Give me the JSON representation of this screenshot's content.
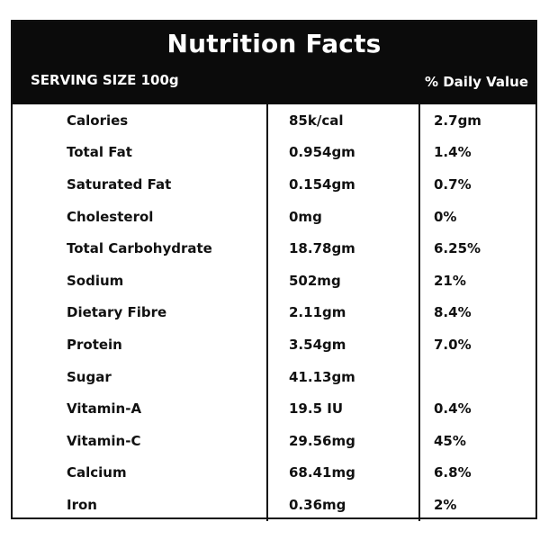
{
  "header": {
    "title": "Nutrition Facts",
    "serving_size": "SERVING SIZE 100g",
    "daily_value_label": "% Daily Value"
  },
  "rows": [
    {
      "name": "Calories",
      "amount": "85k/cal",
      "dv": "2.7gm"
    },
    {
      "name": "Total Fat",
      "amount": "0.954gm",
      "dv": "1.4%"
    },
    {
      "name": "Saturated Fat",
      "amount": "0.154gm",
      "dv": "0.7%"
    },
    {
      "name": "Cholesterol",
      "amount": "0mg",
      "dv": "0%"
    },
    {
      "name": "Total Carbohydrate",
      "amount": "18.78gm",
      "dv": "6.25%"
    },
    {
      "name": "Sodium",
      "amount": "502mg",
      "dv": "21%"
    },
    {
      "name": "Dietary Fibre",
      "amount": "2.11gm",
      "dv": "8.4%"
    },
    {
      "name": "Protein",
      "amount": "3.54gm",
      "dv": "7.0%"
    },
    {
      "name": "Sugar",
      "amount": "41.13gm",
      "dv": ""
    },
    {
      "name": "Vitamin-A",
      "amount": "19.5 IU",
      "dv": "0.4%"
    },
    {
      "name": "Vitamin-C",
      "amount": "29.56mg",
      "dv": "45%"
    },
    {
      "name": "Calcium",
      "amount": "68.41mg",
      "dv": "6.8%"
    },
    {
      "name": "Iron",
      "amount": "0.36mg",
      "dv": "2%"
    }
  ]
}
